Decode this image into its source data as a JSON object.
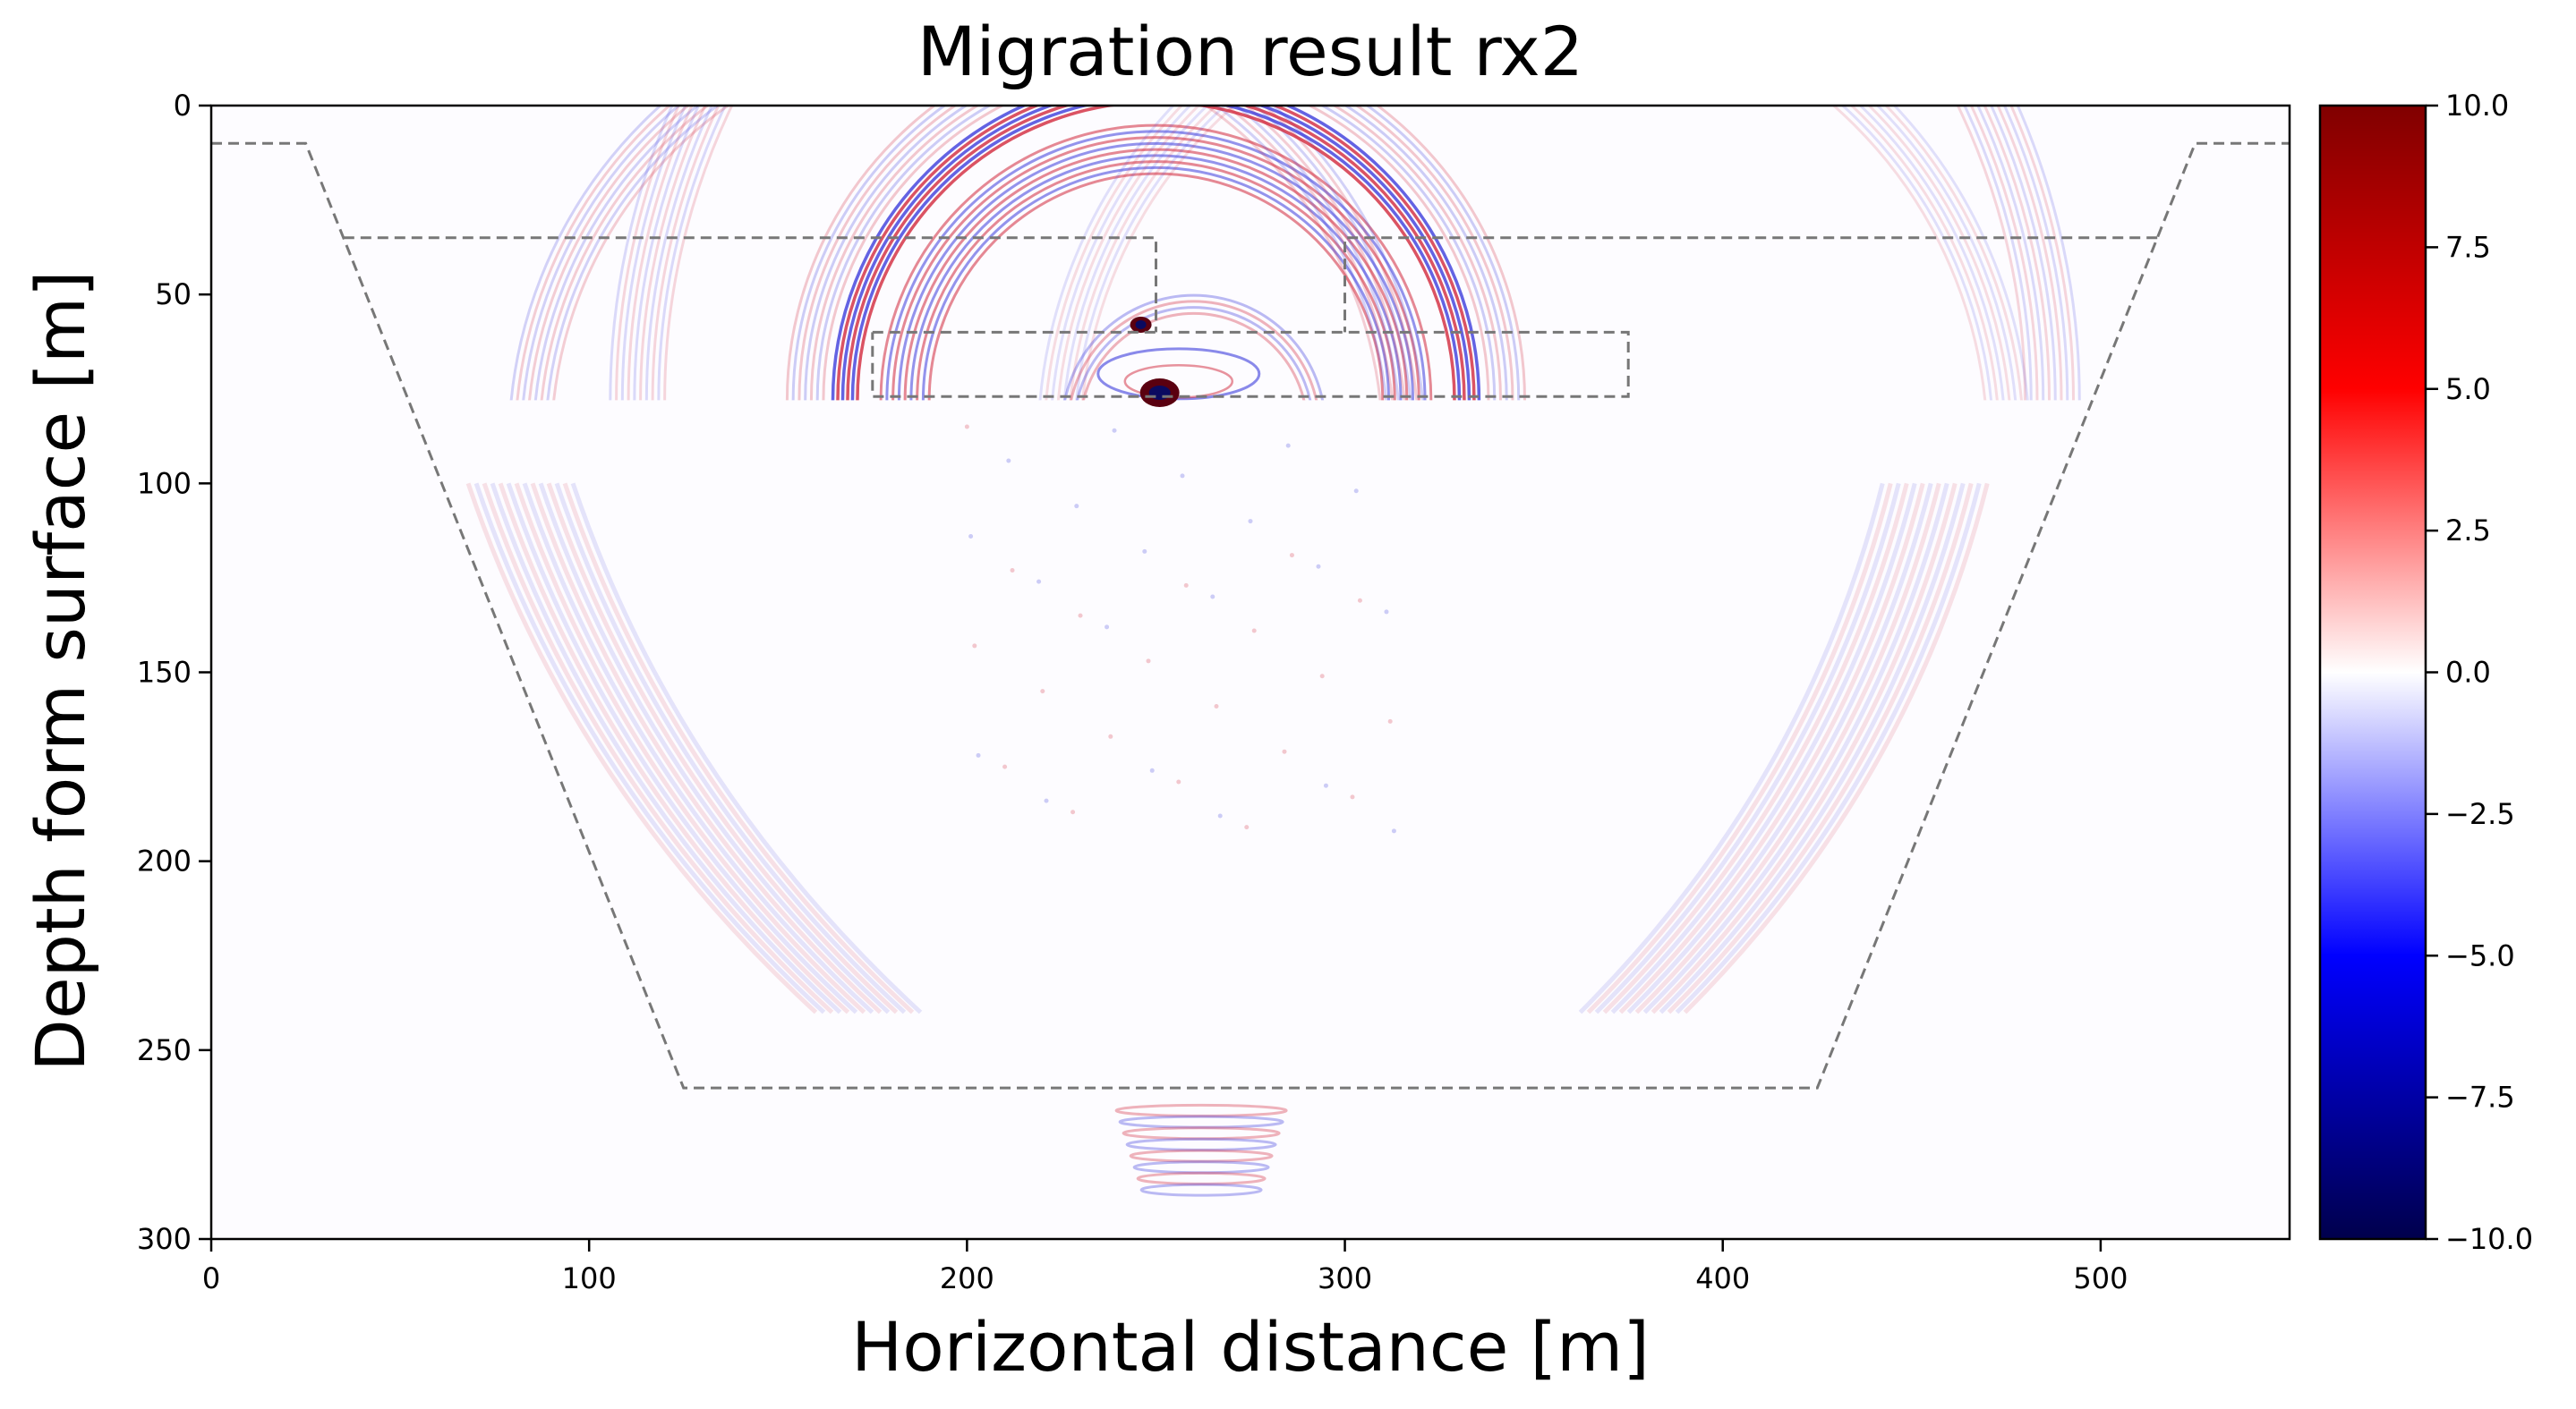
{
  "chart_data": {
    "type": "heatmap",
    "title": "Migration result rx2",
    "xlabel": "Horizontal distance [m]",
    "ylabel": "Depth form surface [m]",
    "xlim": [
      0,
      550
    ],
    "ylim": [
      300,
      0
    ],
    "xticks": [
      0,
      100,
      200,
      300,
      400,
      500
    ],
    "yticks": [
      0,
      50,
      100,
      150,
      200,
      250,
      300
    ],
    "colorbar": {
      "colormap": "seismic",
      "vmin": -10.0,
      "vmax": 10.0,
      "ticks": [
        10.0,
        7.5,
        5.0,
        2.5,
        0.0,
        -2.5,
        -5.0,
        -7.5,
        -10.0
      ],
      "tick_labels": [
        "10.0",
        "7.5",
        "5.0",
        "2.5",
        "0.0",
        "−2.5",
        "−5.0",
        "−7.5",
        "−10.0"
      ]
    },
    "overlays": [
      {
        "name": "outer-trapezoid",
        "style": "dashed",
        "color": "#777777",
        "points": [
          [
            0,
            10
          ],
          [
            25,
            10
          ],
          [
            125,
            260
          ],
          [
            425,
            260
          ],
          [
            525,
            10
          ],
          [
            550,
            10
          ]
        ]
      },
      {
        "name": "left-upper-box",
        "style": "dashed",
        "color": "#777777",
        "points": [
          [
            35,
            35
          ],
          [
            250,
            35
          ],
          [
            250,
            60
          ]
        ]
      },
      {
        "name": "right-upper-box",
        "style": "dashed",
        "color": "#777777",
        "points": [
          [
            515,
            35
          ],
          [
            300,
            35
          ],
          [
            300,
            60
          ]
        ]
      },
      {
        "name": "tunnel-box",
        "style": "dashed",
        "color": "#777777",
        "points": [
          [
            175,
            60
          ],
          [
            375,
            60
          ],
          [
            375,
            77
          ],
          [
            175,
            77
          ],
          [
            175,
            60
          ]
        ]
      }
    ],
    "notable_anomalies": [
      {
        "x": 251,
        "y": 76,
        "value": 10.0
      },
      {
        "x": 246,
        "y": 58,
        "value": 10.0
      }
    ]
  }
}
